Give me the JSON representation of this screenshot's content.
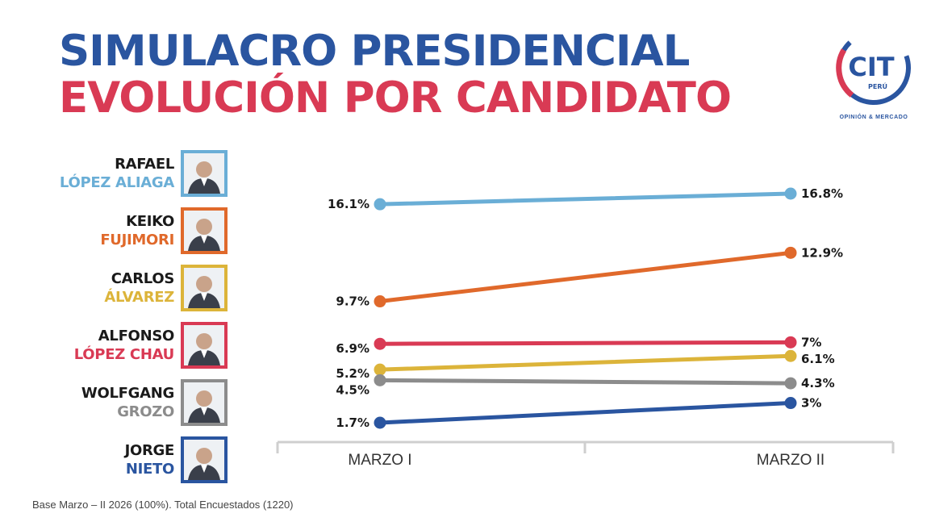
{
  "header": {
    "title_line1": "SIMULACRO PRESIDENCIAL",
    "title_line2": "EVOLUCIÓN POR CANDIDATO",
    "title_color1": "#2a55a0",
    "title_color2": "#d93a54"
  },
  "logo": {
    "brand": "CIT",
    "country": "PERÚ",
    "tagline": "OPINIÓN & MERCADO"
  },
  "candidates": [
    {
      "first": "RAFAEL",
      "last": "LÓPEZ ALIAGA",
      "color": "#6aaed6",
      "icon": "person-photo-icon"
    },
    {
      "first": "KEIKO",
      "last": "FUJIMORI",
      "color": "#e0692b",
      "icon": "person-photo-icon"
    },
    {
      "first": "CARLOS",
      "last": "ÁLVAREZ",
      "color": "#dcb43a",
      "icon": "person-photo-icon"
    },
    {
      "first": "ALFONSO",
      "last": "LÓPEZ CHAU",
      "color": "#d93a54",
      "icon": "person-photo-icon"
    },
    {
      "first": "WOLFGANG",
      "last": "GROZO",
      "color": "#8c8c8c",
      "icon": "person-photo-icon"
    },
    {
      "first": "JORGE",
      "last": "NIETO",
      "color": "#2a55a0",
      "icon": "person-photo-icon"
    }
  ],
  "chart_data": {
    "type": "line",
    "categories": [
      "MARZO I",
      "MARZO II"
    ],
    "series": [
      {
        "name": "RAFAEL LÓPEZ ALIAGA",
        "values": [
          16.1,
          16.8
        ],
        "labels": [
          "16.1%",
          "16.8%"
        ],
        "color": "#6aaed6"
      },
      {
        "name": "KEIKO FUJIMORI",
        "values": [
          9.7,
          12.9
        ],
        "labels": [
          "9.7%",
          "12.9%"
        ],
        "color": "#e0692b"
      },
      {
        "name": "ALFONSO LÓPEZ CHAU",
        "values": [
          6.9,
          7
        ],
        "labels": [
          "6.9%",
          "7%"
        ],
        "color": "#d93a54"
      },
      {
        "name": "CARLOS ÁLVAREZ",
        "values": [
          5.2,
          6.1
        ],
        "labels": [
          "5.2%",
          "6.1%"
        ],
        "color": "#dcb43a"
      },
      {
        "name": "WOLFGANG GROZO",
        "values": [
          4.5,
          4.3
        ],
        "labels": [
          "4.5%",
          "4.3%"
        ],
        "color": "#8c8c8c"
      },
      {
        "name": "JORGE NIETO",
        "values": [
          1.7,
          3
        ],
        "labels": [
          "1.7%",
          "3%"
        ],
        "color": "#2a55a0"
      }
    ],
    "ylim": [
      0,
      20
    ],
    "grid": false,
    "legend": "left"
  },
  "footnote": "Base Marzo – II 2026  (100%). Total Encuestados (1220)"
}
